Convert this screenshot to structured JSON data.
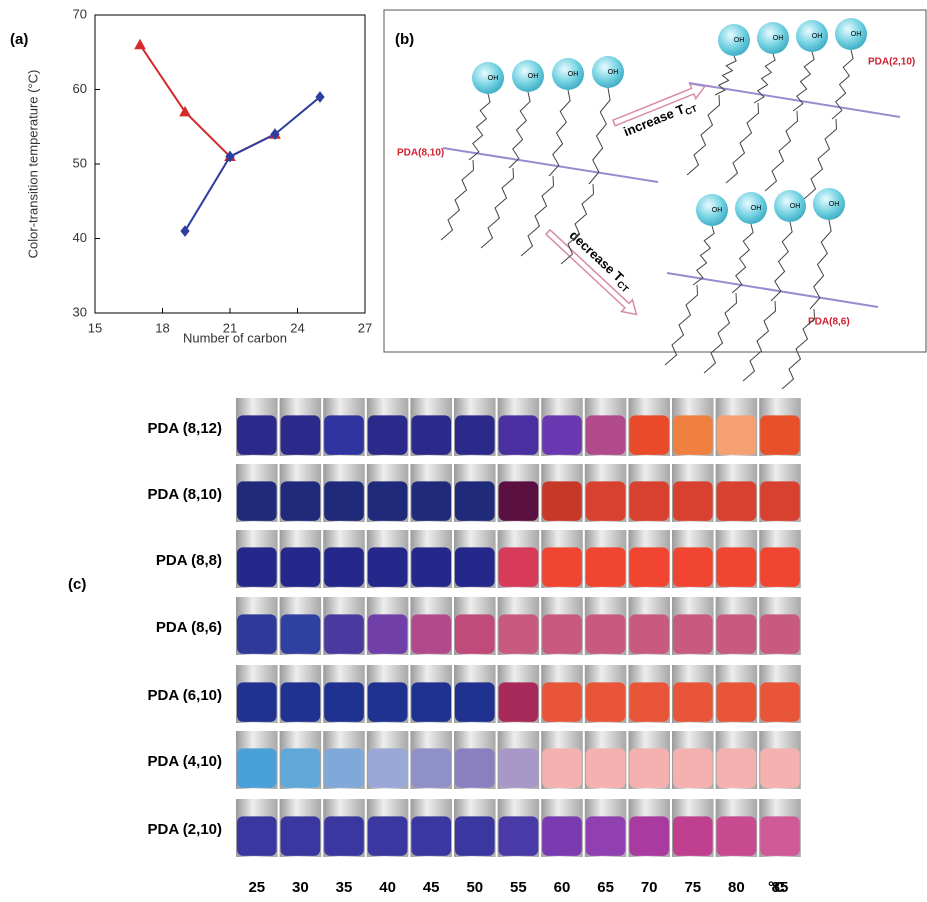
{
  "chart_data": {
    "type": "line",
    "panel_label": "(a)",
    "xlabel": "Number of carbon",
    "ylabel": "Color-transition temperature (°C)",
    "xlim": [
      15,
      27
    ],
    "xticks": [
      15,
      18,
      21,
      24,
      27
    ],
    "ylim": [
      30,
      70
    ],
    "yticks": [
      30,
      40,
      50,
      60,
      70
    ],
    "series": [
      {
        "color": "#d42a2a",
        "marker": "triangle",
        "x": [
          17,
          19,
          21,
          23
        ],
        "values": [
          66,
          57,
          51,
          54
        ]
      },
      {
        "color": "#2f3f9f",
        "marker": "diamond",
        "x": [
          19,
          21,
          23,
          25
        ],
        "values": [
          41,
          51,
          54,
          59
        ]
      }
    ]
  },
  "diagram": {
    "panel_label": "(b)",
    "molecules": [
      "PDA(8,10)",
      "PDA(2,10)",
      "PDA(8,6)"
    ],
    "increase": "increase T",
    "decrease": "decrease T",
    "subscript": "CT",
    "head_label": "OH"
  },
  "photo_grid": {
    "panel_label": "(c)",
    "unit": "°C",
    "temperatures": [
      25,
      30,
      35,
      40,
      45,
      50,
      55,
      60,
      65,
      70,
      75,
      80,
      85
    ],
    "rows": [
      {
        "name": "PDA (8,12)",
        "colors": [
          "#2b2a8a",
          "#2b2a8a",
          "#2f34a0",
          "#2b2a8a",
          "#2b2a8a",
          "#2b2a8a",
          "#4a2fa0",
          "#6a38b0",
          "#b04a8a",
          "#e84a2a",
          "#f08040",
          "#f5a070",
          "#e8502a"
        ]
      },
      {
        "name": "PDA (8,10)",
        "colors": [
          "#1f2a7a",
          "#1f2a7a",
          "#1f2a7a",
          "#1f2a7a",
          "#1f2a7a",
          "#1f2a7a",
          "#5a1040",
          "#c83828",
          "#d84030",
          "#d84030",
          "#d84030",
          "#d84030",
          "#d84030"
        ]
      },
      {
        "name": "PDA (8,8)",
        "colors": [
          "#25288a",
          "#25288a",
          "#25288a",
          "#25288a",
          "#25288a",
          "#25288a",
          "#d83a5a",
          "#f04530",
          "#f04530",
          "#f04530",
          "#f04530",
          "#f04530",
          "#f04530"
        ]
      },
      {
        "name": "PDA (8,6)",
        "colors": [
          "#2d3a9a",
          "#3040a0",
          "#4a3aa0",
          "#7040a8",
          "#b04a8a",
          "#c04a7a",
          "#c85a80",
          "#c85a80",
          "#c85a80",
          "#c85a80",
          "#c85a80",
          "#c85a80",
          "#c85a80"
        ]
      },
      {
        "name": "PDA (6,10)",
        "colors": [
          "#1f3290",
          "#1f3290",
          "#1f3290",
          "#1f3290",
          "#1f3290",
          "#1f3290",
          "#a82a5a",
          "#e85538",
          "#e85538",
          "#e85538",
          "#e85538",
          "#e85538",
          "#e85538"
        ]
      },
      {
        "name": "PDA (4,10)",
        "colors": [
          "#4aa0d8",
          "#60a8d8",
          "#80a8d8",
          "#9aa8d8",
          "#9090c8",
          "#8a80c0",
          "#a898c8",
          "#f5b0b0",
          "#f5b0b0",
          "#f5b0b0",
          "#f5b0b0",
          "#f5b0b0",
          "#f5b0b0"
        ]
      },
      {
        "name": "PDA (2,10)",
        "colors": [
          "#3a38a0",
          "#3a38a0",
          "#3a38a0",
          "#3a38a0",
          "#3a38a0",
          "#3a38a0",
          "#4a3aa8",
          "#7a3ab0",
          "#9040b0",
          "#a83aa0",
          "#c04090",
          "#c84a90",
          "#d05a98"
        ]
      }
    ]
  }
}
